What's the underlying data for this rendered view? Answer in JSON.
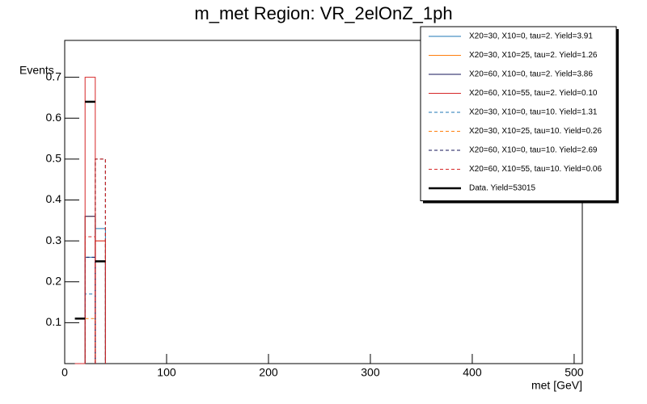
{
  "chart_data": {
    "type": "histogram",
    "title": "m_met Region: VR_2elOnZ_1ph",
    "xlabel": "met [GeV]",
    "ylabel": "Events",
    "bins": [
      10,
      20,
      30,
      40
    ],
    "series": [
      {
        "name": "X20=30, X10=0, tau=2. Yield=3.91",
        "color": "#1f77b4",
        "dashed": false,
        "values": [
          0,
          0.26,
          0.33
        ]
      },
      {
        "name": "X20=30, X10=25, tau=2. Yield=1.26",
        "color": "#ff7f0e",
        "dashed": false,
        "values": [
          0,
          0.36,
          0.3
        ]
      },
      {
        "name": "X20=60, X10=0, tau=2. Yield=3.86",
        "color": "#14145a",
        "dashed": false,
        "values": [
          0,
          0.36,
          0.25
        ]
      },
      {
        "name": "X20=60, X10=55, tau=2. Yield=0.10",
        "color": "#d62728",
        "dashed": false,
        "values": [
          0,
          0.7,
          0.3
        ]
      },
      {
        "name": "X20=30, X10=0, tau=10. Yield=1.31",
        "color": "#1f77b4",
        "dashed": true,
        "values": [
          0,
          0.17,
          0.5
        ]
      },
      {
        "name": "X20=30, X10=25, tau=10. Yield=0.26",
        "color": "#ff7f0e",
        "dashed": true,
        "values": [
          0,
          0.11,
          0.5
        ]
      },
      {
        "name": "X20=60, X10=0, tau=10. Yield=2.69",
        "color": "#14145a",
        "dashed": true,
        "values": [
          0,
          0.26,
          0.5
        ]
      },
      {
        "name": "X20=60, X10=55, tau=10. Yield=0.06",
        "color": "#d62728",
        "dashed": true,
        "values": [
          0,
          0.31,
          0.5
        ]
      },
      {
        "name": "Data. Yield=53015",
        "color": "#000000",
        "data": true,
        "values": [
          0.11,
          0.64,
          0.25
        ]
      }
    ],
    "xlim": [
      0,
      508
    ],
    "xticks": [
      0,
      100,
      200,
      300,
      400,
      500
    ],
    "ylim": [
      0,
      0.79
    ],
    "yticks": [
      0.1,
      0.2,
      0.3,
      0.4,
      0.5,
      0.6,
      0.7
    ],
    "legend": "upper right"
  }
}
